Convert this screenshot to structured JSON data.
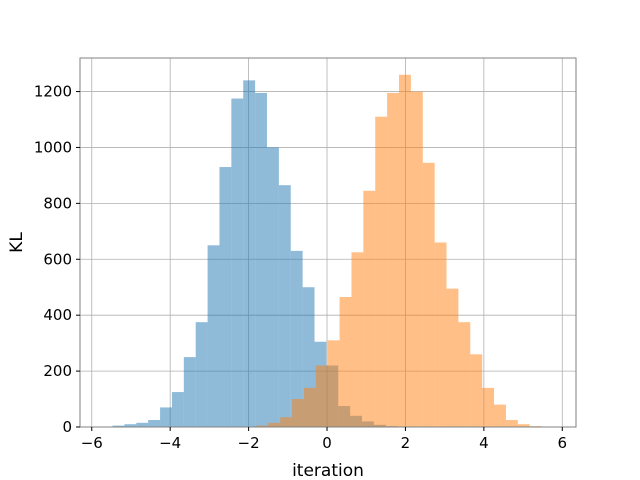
{
  "chart_data": {
    "type": "bar",
    "subtype": "overlapping-histogram",
    "xlabel": "iteration",
    "ylabel": "KL",
    "xlim": [
      -6.3,
      6.35
    ],
    "ylim": [
      0,
      1320
    ],
    "xticks": [
      -6,
      -4,
      -2,
      0,
      2,
      4,
      6
    ],
    "yticks": [
      0,
      200,
      400,
      600,
      800,
      1000,
      1200
    ],
    "grid": true,
    "series": [
      {
        "color": "#1f77b4",
        "alpha": 0.5,
        "bin_width": 0.303,
        "bin_edges": [
          -5.47,
          -5.167,
          -4.864,
          -4.561,
          -4.258,
          -3.955,
          -3.652,
          -3.349,
          -3.046,
          -2.743,
          -2.44,
          -2.137,
          -1.834,
          -1.531,
          -1.228,
          -0.925,
          -0.622,
          -0.319,
          -0.016,
          0.287,
          0.59,
          0.893,
          1.196,
          1.499,
          1.802
        ],
        "counts": [
          5,
          10,
          15,
          25,
          70,
          125,
          250,
          375,
          650,
          930,
          1175,
          1240,
          1195,
          1000,
          865,
          630,
          500,
          305,
          220,
          75,
          40,
          20,
          8,
          3
        ]
      },
      {
        "color": "#ff7f0e",
        "alpha": 0.5,
        "bin_width": 0.303,
        "bin_edges": [
          -1.8,
          -1.497,
          -1.194,
          -0.891,
          -0.588,
          -0.285,
          0.018,
          0.321,
          0.624,
          0.927,
          1.23,
          1.533,
          1.836,
          2.139,
          2.442,
          2.745,
          3.048,
          3.351,
          3.654,
          3.957,
          4.26,
          4.563,
          4.866,
          5.169,
          5.472
        ],
        "counts": [
          5,
          15,
          35,
          100,
          140,
          220,
          310,
          465,
          625,
          845,
          1110,
          1195,
          1260,
          1200,
          945,
          660,
          495,
          375,
          260,
          140,
          80,
          25,
          10,
          3
        ]
      }
    ]
  }
}
